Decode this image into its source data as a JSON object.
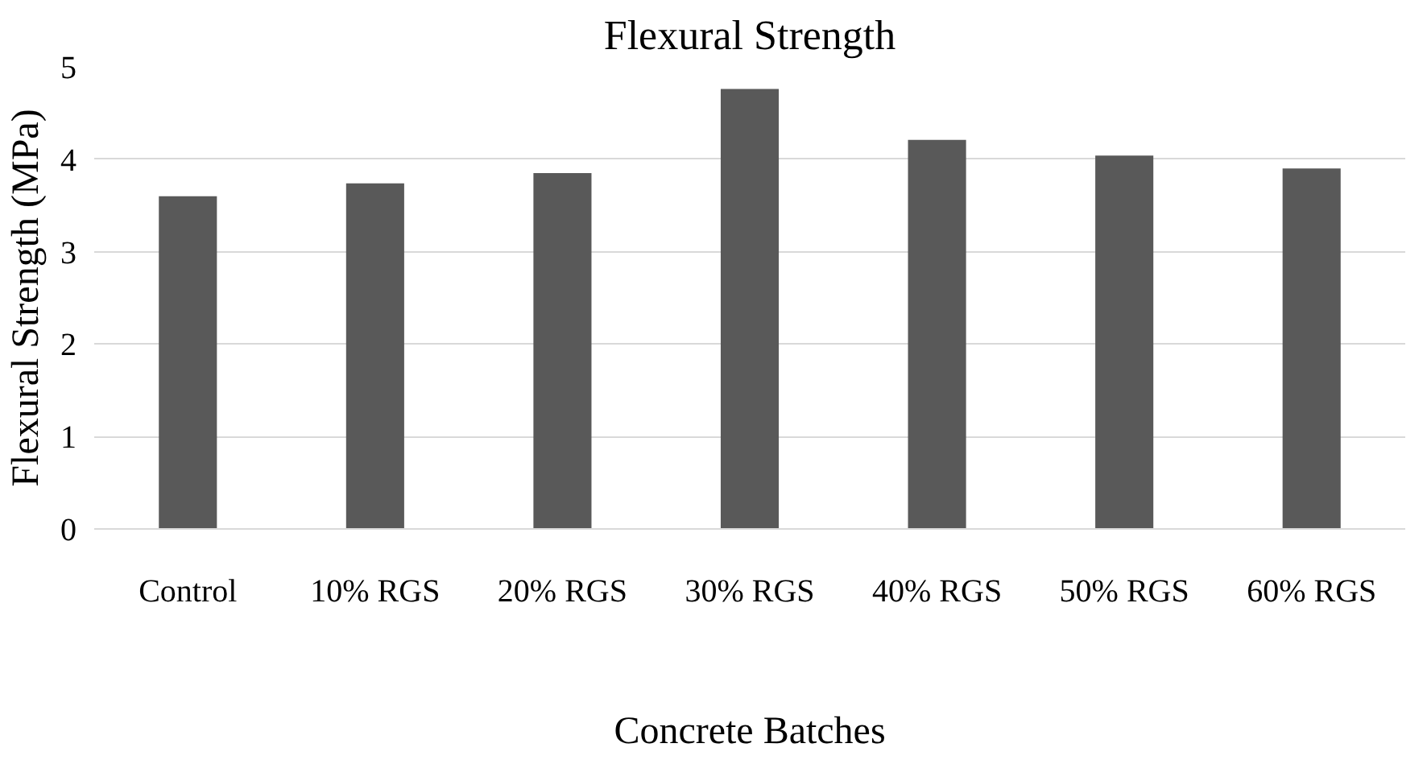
{
  "chart_data": {
    "type": "bar",
    "title": "Flexural Strength",
    "xlabel": "Concrete Batches",
    "ylabel": "Flexural Strength (MPa)",
    "categories": [
      "Control",
      "10% RGS",
      "20% RGS",
      "30% RGS",
      "40% RGS",
      "50% RGS",
      "60% RGS"
    ],
    "values": [
      3.6,
      3.74,
      3.85,
      4.76,
      4.21,
      4.04,
      3.9
    ],
    "color": "#595959",
    "ylim": [
      0,
      5
    ],
    "yticks": [
      0,
      1,
      2,
      3,
      4,
      5
    ],
    "grid": "y"
  }
}
